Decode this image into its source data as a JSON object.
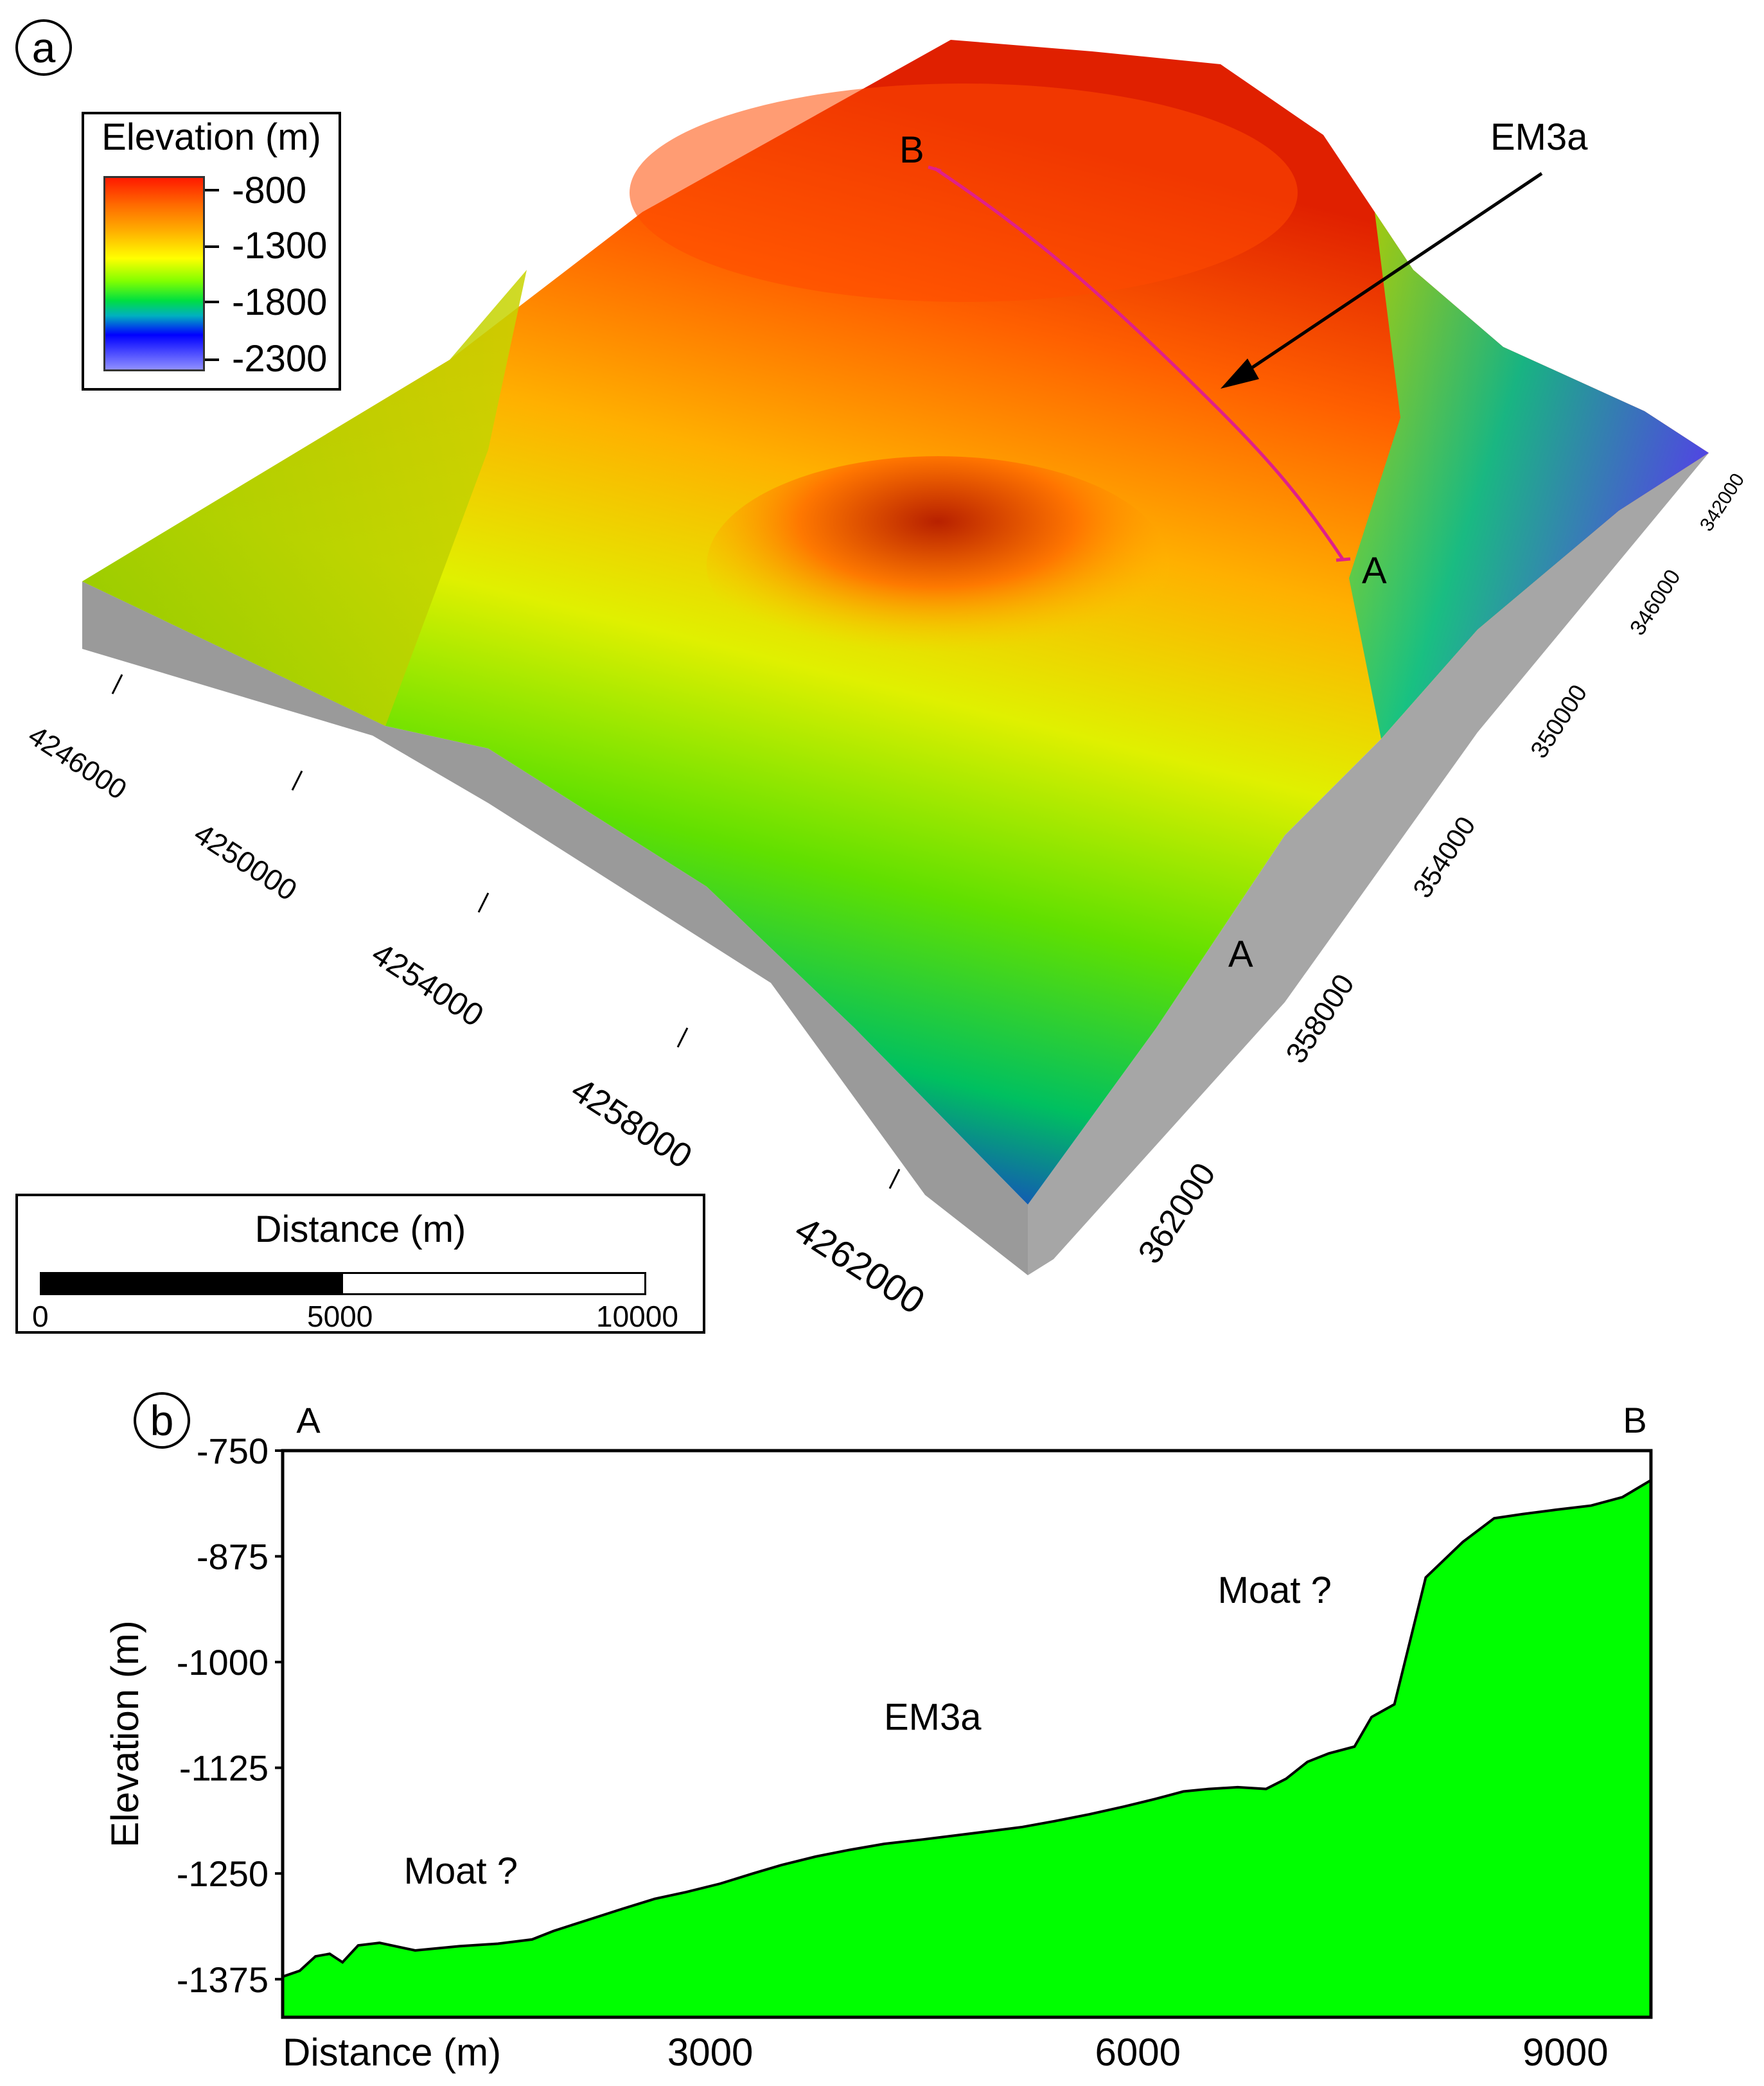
{
  "panel_a": {
    "tag": "a",
    "legend": {
      "title": "Elevation (m)",
      "labels": [
        "-800",
        "-1300",
        "-1800",
        "-2300"
      ]
    },
    "scale_bar": {
      "title": "Distance (m)",
      "labels": [
        "0",
        "5000",
        "10000"
      ]
    },
    "northing_ticks": [
      "4246000",
      "4250000",
      "4254000",
      "4258000",
      "4262000"
    ],
    "easting_ticks": [
      "342000",
      "346000",
      "350000",
      "354000",
      "358000",
      "362000"
    ],
    "annotation": "EM3a",
    "profile_labels": {
      "start": "A",
      "end": "B",
      "extent": "A"
    }
  },
  "panel_b": {
    "tag": "b",
    "chart_data": {
      "type": "area",
      "title": "",
      "xlabel": "Distance (m)",
      "ylabel": "Elevation (m)",
      "xlim": [
        0,
        9600
      ],
      "ylim": [
        -1420,
        -750
      ],
      "x_ticks": [
        "3000",
        "6000",
        "9000"
      ],
      "x_tick_values": [
        3000,
        6000,
        9000
      ],
      "y_ticks": [
        "-750",
        "-875",
        "-1000",
        "-1125",
        "-1250",
        "-1375"
      ],
      "y_tick_values": [
        -750,
        -875,
        -1000,
        -1125,
        -1250,
        -1375
      ],
      "fill_color": "#00ff00",
      "series": [
        {
          "x": [
            0,
            120,
            230,
            330,
            420,
            530,
            680,
            930,
            1240,
            1510,
            1750,
            1900,
            2140,
            2380,
            2610,
            2830,
            3070,
            3300,
            3500,
            3740,
            3980,
            4220,
            4480,
            4720,
            4960,
            5190,
            5420,
            5660,
            5900,
            6120,
            6320,
            6500,
            6700,
            6900,
            7040,
            7190,
            7340,
            7520,
            7640,
            7800,
            8020,
            8280,
            8500,
            8700,
            8930,
            9180,
            9400,
            9600
          ],
          "y": [
            -1372,
            -1365,
            -1348,
            -1345,
            -1355,
            -1335,
            -1332,
            -1341,
            -1336,
            -1333,
            -1328,
            -1318,
            -1305,
            -1292,
            -1280,
            -1272,
            -1262,
            -1250,
            -1240,
            -1230,
            -1222,
            -1215,
            -1210,
            -1205,
            -1200,
            -1195,
            -1188,
            -1180,
            -1171,
            -1162,
            -1153,
            -1150,
            -1148,
            -1150,
            -1138,
            -1118,
            -1108,
            -1100,
            -1065,
            -1050,
            -900,
            -858,
            -830,
            -825,
            -820,
            -815,
            -805,
            -785
          ]
        }
      ],
      "annotations": [
        {
          "text": "Moat ?",
          "x": 1250,
          "y": -1262
        },
        {
          "text": "EM3a",
          "x": 4560,
          "y": -1080
        },
        {
          "text": "Moat ?",
          "x": 6960,
          "y": -930
        }
      ],
      "end_labels": {
        "left": "A",
        "right": "B"
      }
    }
  }
}
